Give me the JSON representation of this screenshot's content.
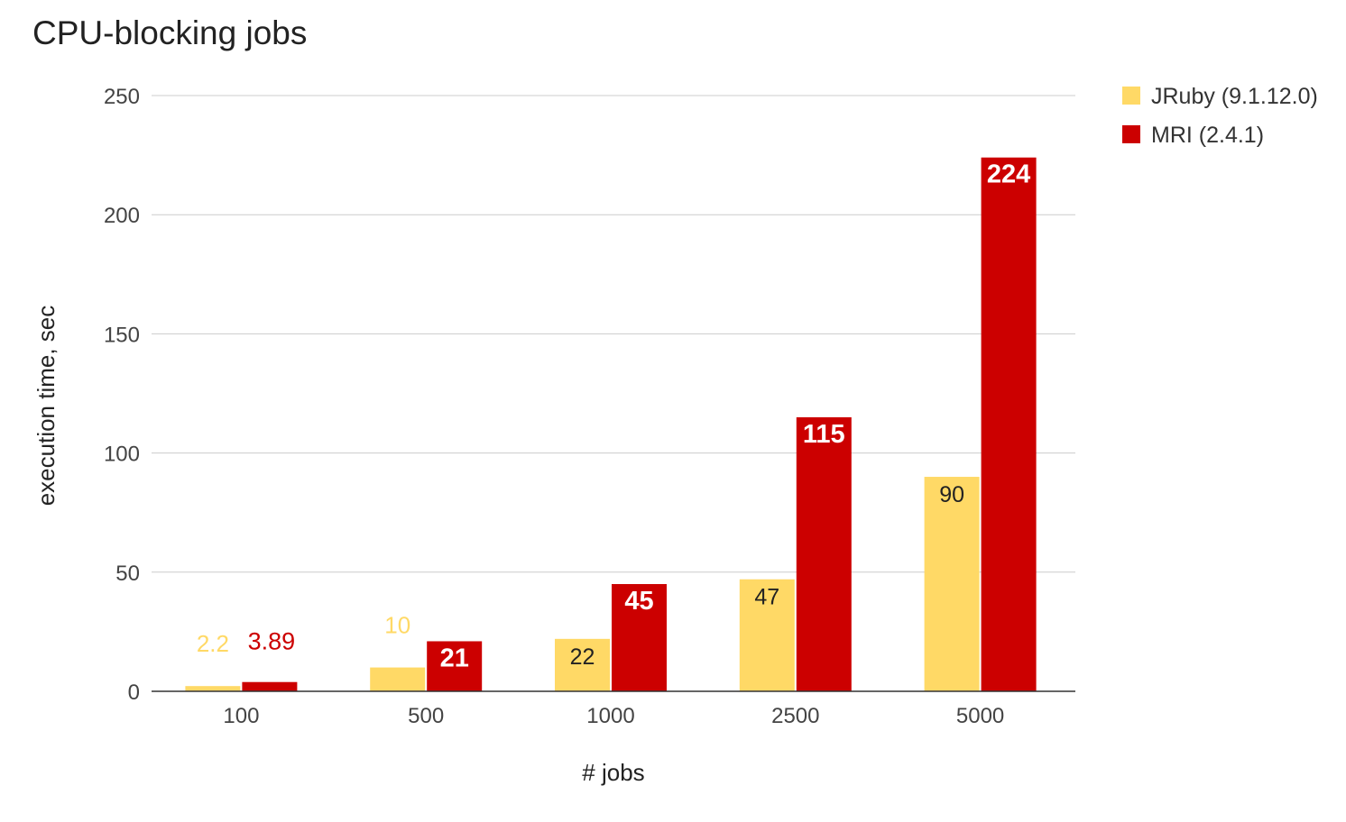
{
  "chart_data": {
    "type": "bar",
    "title": "CPU-blocking jobs",
    "xlabel": "# jobs",
    "ylabel": "execution time, sec",
    "categories": [
      "100",
      "500",
      "1000",
      "2500",
      "5000"
    ],
    "ylim": [
      0,
      250
    ],
    "yticks": [
      "0",
      "50",
      "100",
      "150",
      "200",
      "250"
    ],
    "grid": true,
    "legend_position": "top-right",
    "series": [
      {
        "name": "JRuby (9.1.12.0)",
        "color": "#FFD966",
        "values": [
          2.2,
          10,
          22,
          47,
          90
        ],
        "labels": [
          "2.2",
          "10",
          "22",
          "47",
          "90"
        ]
      },
      {
        "name": "MRI (2.4.1)",
        "color": "#CC0000",
        "values": [
          3.89,
          21,
          45,
          115,
          224
        ],
        "labels": [
          "3.89",
          "21",
          "45",
          "115",
          "224"
        ]
      }
    ]
  }
}
